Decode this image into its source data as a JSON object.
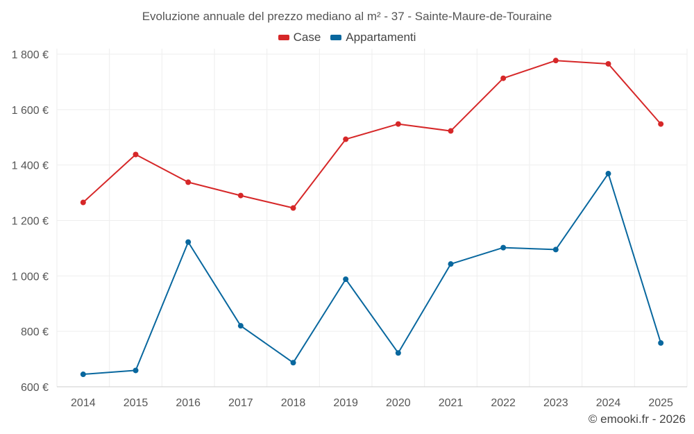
{
  "chart_data": {
    "type": "line",
    "title": "Evoluzione annuale del prezzo mediano al m² - 37 - Sainte-Maure-de-Touraine",
    "categories": [
      "2014",
      "2015",
      "2016",
      "2017",
      "2018",
      "2019",
      "2020",
      "2021",
      "2022",
      "2023",
      "2024",
      "2025"
    ],
    "y_ticks": [
      600,
      800,
      1000,
      1200,
      1400,
      1600,
      1800
    ],
    "y_tick_labels": [
      "600 €",
      "800 €",
      "1 000 €",
      "1 200 €",
      "1 400 €",
      "1 600 €",
      "1 800 €"
    ],
    "ylim": [
      600,
      1820
    ],
    "grid": true,
    "legend_position": "top-center",
    "series": [
      {
        "name": "Case",
        "color": "#d62728",
        "values": [
          1265,
          1438,
          1338,
          1290,
          1245,
          1493,
          1548,
          1523,
          1713,
          1777,
          1765,
          1548
        ]
      },
      {
        "name": "Appartamenti",
        "color": "#08679e",
        "values": [
          645,
          659,
          1122,
          820,
          687,
          988,
          722,
          1043,
          1102,
          1095,
          1369,
          758
        ]
      }
    ]
  },
  "footer": "© emooki.fr - 2026"
}
